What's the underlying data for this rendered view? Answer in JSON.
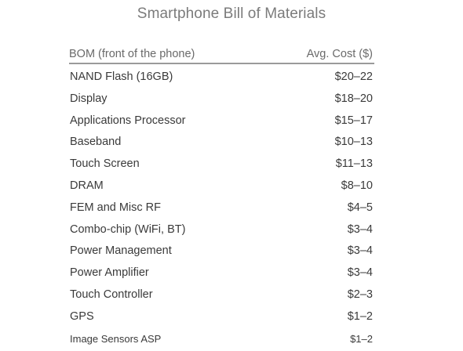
{
  "title": "Smartphone Bill of Materials",
  "table": {
    "columns": [
      "BOM (front of the phone)",
      "Avg. Cost ($)"
    ],
    "rows": [
      {
        "component": "NAND Flash (16GB)",
        "cost": "$20–22"
      },
      {
        "component": "Display",
        "cost": "$18–20"
      },
      {
        "component": "Applications Processor",
        "cost": "$15–17"
      },
      {
        "component": "Baseband",
        "cost": "$10–13"
      },
      {
        "component": "Touch Screen",
        "cost": "$11–13"
      },
      {
        "component": "DRAM",
        "cost": "$8–10"
      },
      {
        "component": "FEM and Misc RF",
        "cost": "$4–5"
      },
      {
        "component": "Combo-chip (WiFi, BT)",
        "cost": "$3–4"
      },
      {
        "component": "Power Management",
        "cost": "$3–4"
      },
      {
        "component": "Power Amplifier",
        "cost": "$3–4"
      },
      {
        "component": "Touch Controller",
        "cost": "$2–3"
      },
      {
        "component": "GPS",
        "cost": "$1–2"
      },
      {
        "component": "Image Sensors ASP",
        "cost": "$1–2"
      }
    ]
  }
}
